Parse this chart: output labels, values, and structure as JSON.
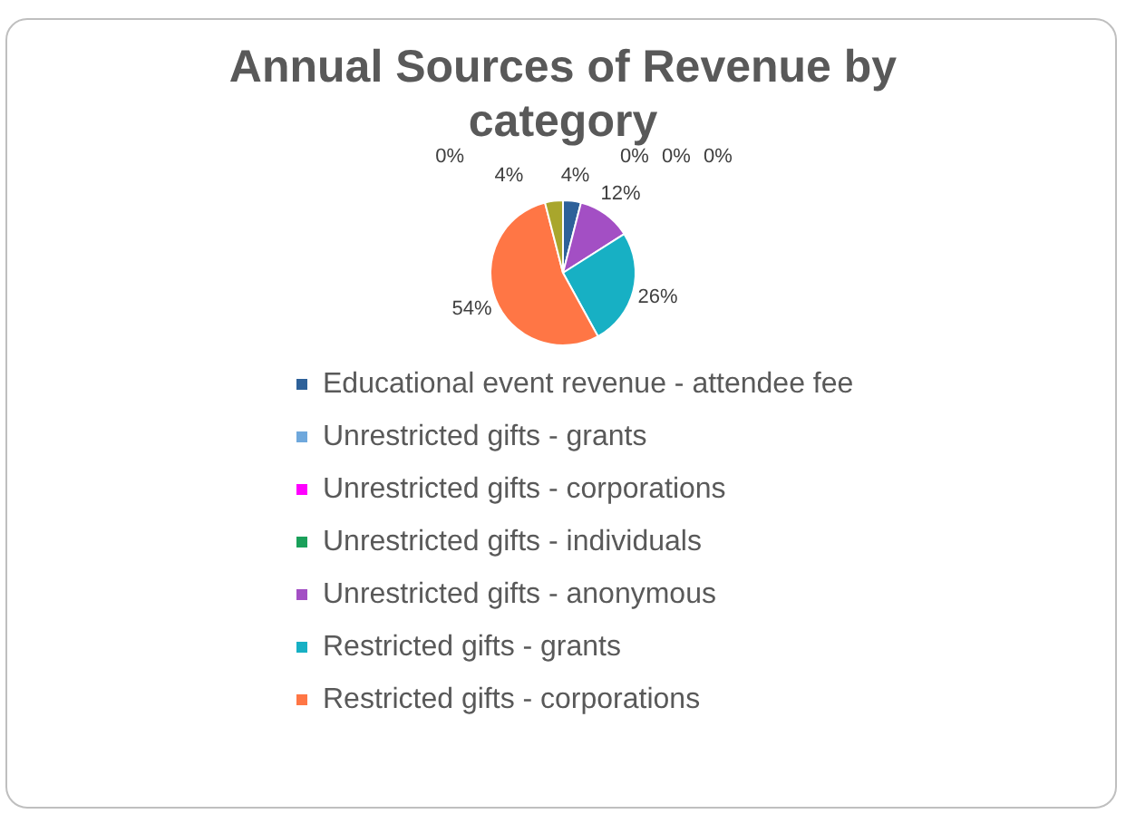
{
  "chart_data": {
    "type": "pie",
    "title": "Annual Sources of Revenue by category",
    "categories": [
      "Educational event revenue - attendee fee",
      "Unrestricted gifts - grants",
      "Unrestricted gifts - corporations",
      "Unrestricted gifts - individuals",
      "Unrestricted gifts - anonymous",
      "Restricted gifts - grants",
      "Restricted gifts - corporations",
      null,
      null
    ],
    "values": [
      4,
      0,
      0,
      0,
      12,
      26,
      54,
      0,
      4
    ],
    "colors": [
      "#2e6199",
      "#6fa8dc",
      "#ff00ff",
      "#1aa05a",
      "#a34fc4",
      "#17b0c4",
      "#ff7645",
      "#c0504d",
      "#a9a62c"
    ],
    "value_labels": [
      "4%",
      "0%",
      "0%",
      "0%",
      "12%",
      "26%",
      "54%",
      "0%",
      "4%"
    ],
    "legend": "bottom"
  }
}
